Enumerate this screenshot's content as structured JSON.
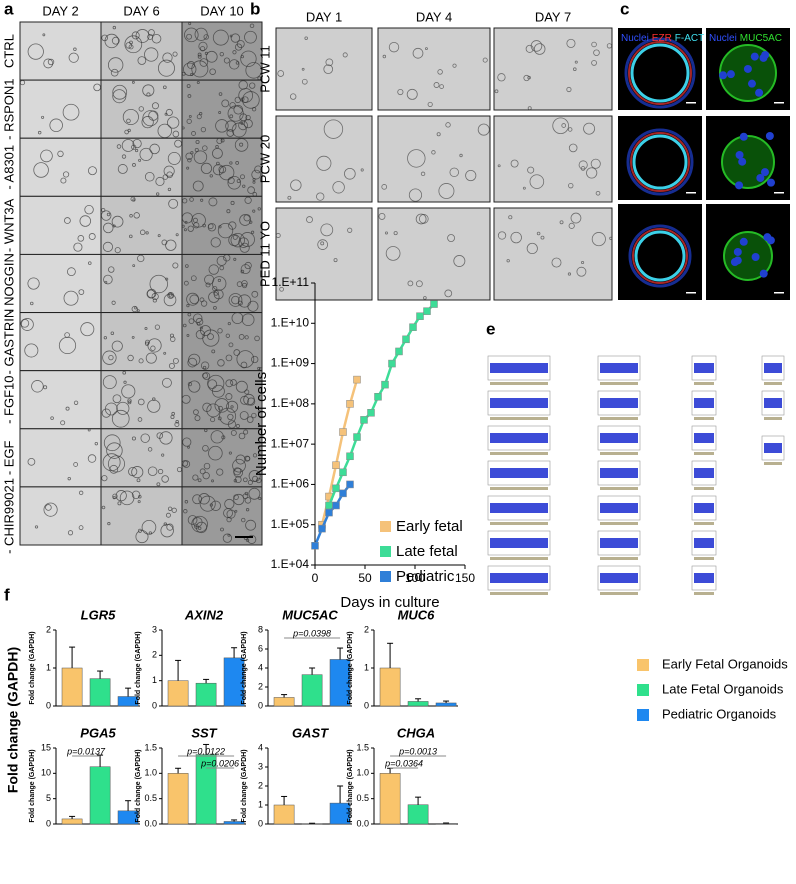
{
  "panels": {
    "a": {
      "label": "a",
      "columns": [
        "DAY 2",
        "DAY 6",
        "DAY 10"
      ],
      "rows": [
        "CTRL",
        "- RSPON1",
        "- A8301",
        "- WNT3A",
        "- NOGGIN",
        "- GASTRIN",
        "- FGF10",
        "- EGF",
        "- CHIR99021"
      ]
    },
    "b": {
      "label": "b",
      "columns": [
        "DAY 1",
        "DAY 4",
        "DAY 7"
      ],
      "rows": [
        "PCW 11",
        "PCW 20",
        "PED 11 YO"
      ]
    },
    "c": {
      "label": "c",
      "stains": [
        [
          "Nuclei",
          "EZR",
          "F-ACT"
        ],
        [
          "Nuclei",
          "MUC5AC"
        ]
      ]
    },
    "e": {
      "label": "e"
    },
    "f": {
      "label": "f",
      "ylabel": "Fold change (GAPDH)",
      "legend": [
        {
          "name": "Early Fetal Organoids",
          "color": "#f9c46b"
        },
        {
          "name": "Late Fetal Organoids",
          "color": "#2fe08c"
        },
        {
          "name": "Pediatric Organoids",
          "color": "#1e88f0"
        }
      ]
    }
  },
  "chart_data": [
    {
      "type": "line",
      "panel": "d",
      "xlabel": "Days in culture",
      "ylabel": "Number of cells",
      "log_y": true,
      "xlim": [
        0,
        150
      ],
      "xticks": [
        0,
        50,
        100,
        150
      ],
      "ylim": [
        10000,
        100000000000
      ],
      "yticks": [
        {
          "value": 10000,
          "label": "1.E+04"
        },
        {
          "value": 100000,
          "label": "1.E+05"
        },
        {
          "value": 1000000,
          "label": "1.E+06"
        },
        {
          "value": 10000000,
          "label": "1.E+07"
        },
        {
          "value": 100000000,
          "label": "1.E+08"
        },
        {
          "value": 1000000000,
          "label": "1.E+09"
        },
        {
          "value": 10000000000,
          "label": "1.E+10"
        },
        {
          "value": 100000000000,
          "label": "1.E+11"
        }
      ],
      "series": [
        {
          "name": "Early fetal",
          "color": "#f5c27a",
          "x": [
            7,
            14,
            21,
            28,
            35,
            42
          ],
          "values": [
            100000,
            500000,
            3000000,
            20000000,
            100000000,
            400000000
          ]
        },
        {
          "name": "Late fetal",
          "color": "#3ddc97",
          "x": [
            14,
            21,
            28,
            35,
            42,
            49,
            56,
            63,
            70,
            77,
            84,
            91,
            98,
            105,
            112,
            119
          ],
          "values": [
            300000,
            800000,
            2000000,
            5000000,
            15000000,
            40000000,
            60000000,
            150000000,
            300000000,
            1000000000,
            2000000000,
            4000000000,
            8000000000,
            15000000000,
            20000000000,
            30000000000
          ]
        },
        {
          "name": "Pediatric",
          "color": "#2f7fd8",
          "x": [
            0,
            7,
            14,
            21,
            28,
            35
          ],
          "values": [
            30000,
            80000,
            200000,
            300000,
            600000,
            1000000
          ]
        }
      ]
    },
    {
      "type": "bar",
      "title": "LGR5",
      "ylabel": "Fold change (GAPDH)",
      "ylim": [
        0,
        2
      ],
      "yticks": [
        0,
        1,
        2
      ],
      "values": [
        1.0,
        0.72,
        0.25
      ],
      "errors": [
        0.55,
        0.2,
        0.22
      ],
      "annotations": []
    },
    {
      "type": "bar",
      "title": "AXIN2",
      "ylabel": "Fold change (GAPDH)",
      "ylim": [
        0,
        3
      ],
      "yticks": [
        0,
        1,
        2,
        3
      ],
      "values": [
        1.0,
        0.9,
        1.9
      ],
      "errors": [
        0.8,
        0.15,
        0.4
      ],
      "annotations": []
    },
    {
      "type": "bar",
      "title": "MUC5AC",
      "ylabel": "Fold change (GAPDH)",
      "ylim": [
        0,
        8
      ],
      "yticks": [
        0,
        2,
        4,
        6,
        8
      ],
      "values": [
        0.9,
        3.3,
        4.9
      ],
      "errors": [
        0.3,
        0.7,
        1.2
      ],
      "annotations": [
        "p=0.0398"
      ]
    },
    {
      "type": "bar",
      "title": "MUC6",
      "ylabel": "Fold change (GAPDH)",
      "ylim": [
        0,
        2
      ],
      "yticks": [
        0,
        1,
        2
      ],
      "values": [
        1.0,
        0.12,
        0.08
      ],
      "errors": [
        0.65,
        0.07,
        0.05
      ],
      "annotations": []
    },
    {
      "type": "bar",
      "title": "PGA5",
      "ylabel": "Fold change (GAPDH)",
      "ylim": [
        0,
        15
      ],
      "yticks": [
        0,
        5,
        10,
        15
      ],
      "values": [
        1.0,
        11.3,
        2.6
      ],
      "errors": [
        0.5,
        2.3,
        2.0
      ],
      "annotations": [
        "p=0.0137"
      ]
    },
    {
      "type": "bar",
      "title": "SST",
      "ylabel": "Fold change (GAPDH)",
      "ylim": [
        0,
        1.5
      ],
      "yticks": [
        {
          "value": 0,
          "label": "0.0"
        },
        0.5,
        {
          "value": 1,
          "label": "1.0"
        },
        1.5
      ],
      "values": [
        1.0,
        1.37,
        0.05
      ],
      "errors": [
        0.1,
        0.2,
        0.03
      ],
      "annotations": [
        "p=0.0122",
        "p=0.0206"
      ]
    },
    {
      "type": "bar",
      "title": "GAST",
      "ylabel": "Fold change (GAPDH)",
      "ylim": [
        0,
        4
      ],
      "yticks": [
        0,
        1,
        2,
        3,
        4
      ],
      "values": [
        1.0,
        0.02,
        1.1
      ],
      "errors": [
        0.45,
        0.02,
        0.9
      ],
      "annotations": []
    },
    {
      "type": "bar",
      "title": "CHGA",
      "ylabel": "Fold change (GAPDH)",
      "ylim": [
        0,
        1.5
      ],
      "yticks": [
        {
          "value": 0,
          "label": "0.0"
        },
        0.5,
        {
          "value": 1,
          "label": "1.0"
        },
        1.5
      ],
      "values": [
        1.0,
        0.38,
        0.01
      ],
      "errors": [
        0.1,
        0.15,
        0.01
      ],
      "annotations": [
        "p=0.0013",
        "p=0.0364"
      ]
    }
  ]
}
